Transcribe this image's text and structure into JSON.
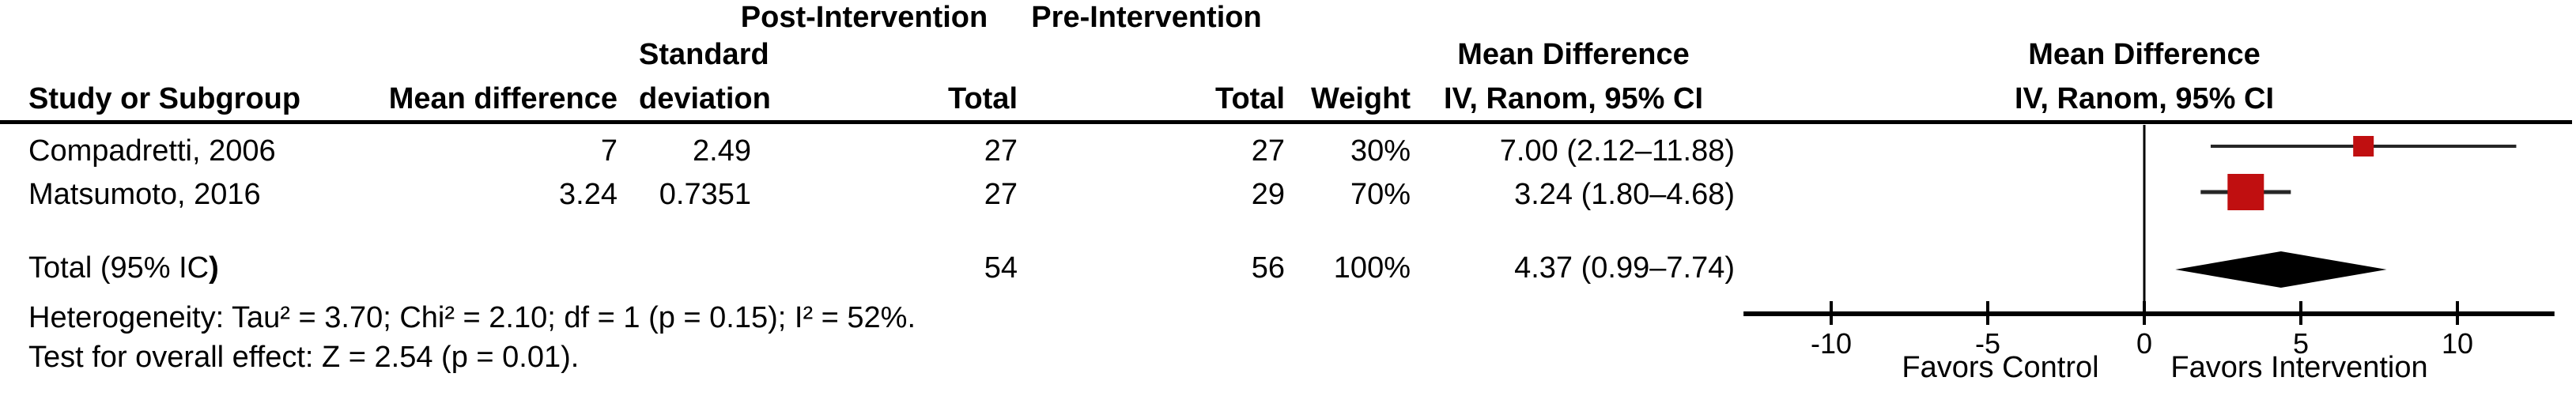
{
  "table": {
    "group_headers": {
      "post": "Post-Intervention",
      "pre": "Pre-Intervention"
    },
    "columns": {
      "study": "Study or Subgroup",
      "mean_difference": "Mean difference",
      "sd_line1": "Standard",
      "sd_line2": "deviation",
      "total_post": "Total",
      "total_pre": "Total",
      "weight": "Weight",
      "ci_line1": "Mean Difference",
      "ci_line2": "IV, Ranom, 95% CI"
    },
    "rows": [
      {
        "study": "Compadretti, 2006",
        "mean_difference": "7",
        "sd": "2.49",
        "total_post": "27",
        "total_pre": "27",
        "weight": "30%",
        "ci": "7.00 (2.12–11.88)"
      },
      {
        "study": "Matsumoto, 2016",
        "mean_difference": "3.24",
        "sd": "0.7351",
        "total_post": "27",
        "total_pre": "29",
        "weight": "70%",
        "ci": "3.24 (1.80–4.68)"
      }
    ],
    "total_row": {
      "label": "Total (95% IC",
      "label_bold_suffix": ")",
      "total_post": "54",
      "total_pre": "56",
      "weight": "100%",
      "ci": "4.37 (0.99–7.74)"
    },
    "footnotes": {
      "heterogeneity": "Heterogeneity: Tau² = 3.70; Chi² = 2.10; df = 1 (p = 0.15); I² = 52%.",
      "overall_effect": "Test for overall effect: Z = 2.54 (p = 0.01)."
    }
  },
  "plot_header": {
    "line1": "Mean Difference",
    "line2": "IV, Ranom, 95% CI"
  },
  "chart_data": {
    "type": "forest",
    "effect_measure": "Mean Difference IV, Ranom, 95% CI",
    "studies": [
      {
        "label": "Compadretti, 2006",
        "estimate": 7.0,
        "ci_low": 2.12,
        "ci_high": 11.88,
        "weight_pct": 30
      },
      {
        "label": "Matsumoto, 2016",
        "estimate": 3.24,
        "ci_low": 1.8,
        "ci_high": 4.68,
        "weight_pct": 70
      }
    ],
    "total": {
      "label": "Total (95% IC)",
      "estimate": 4.37,
      "ci_low": 0.99,
      "ci_high": 7.74,
      "weight_pct": 100
    },
    "axis": {
      "ticks": [
        -10,
        -5,
        0,
        5,
        10
      ],
      "min": -12.8,
      "max": 13.1,
      "label_left": "Favors Control",
      "label_right": "Favors Intervention"
    },
    "colors": {
      "study_marker": "#c00f10",
      "summary_diamond": "#000000",
      "ci_line": "#262626",
      "axis": "#000000"
    }
  }
}
